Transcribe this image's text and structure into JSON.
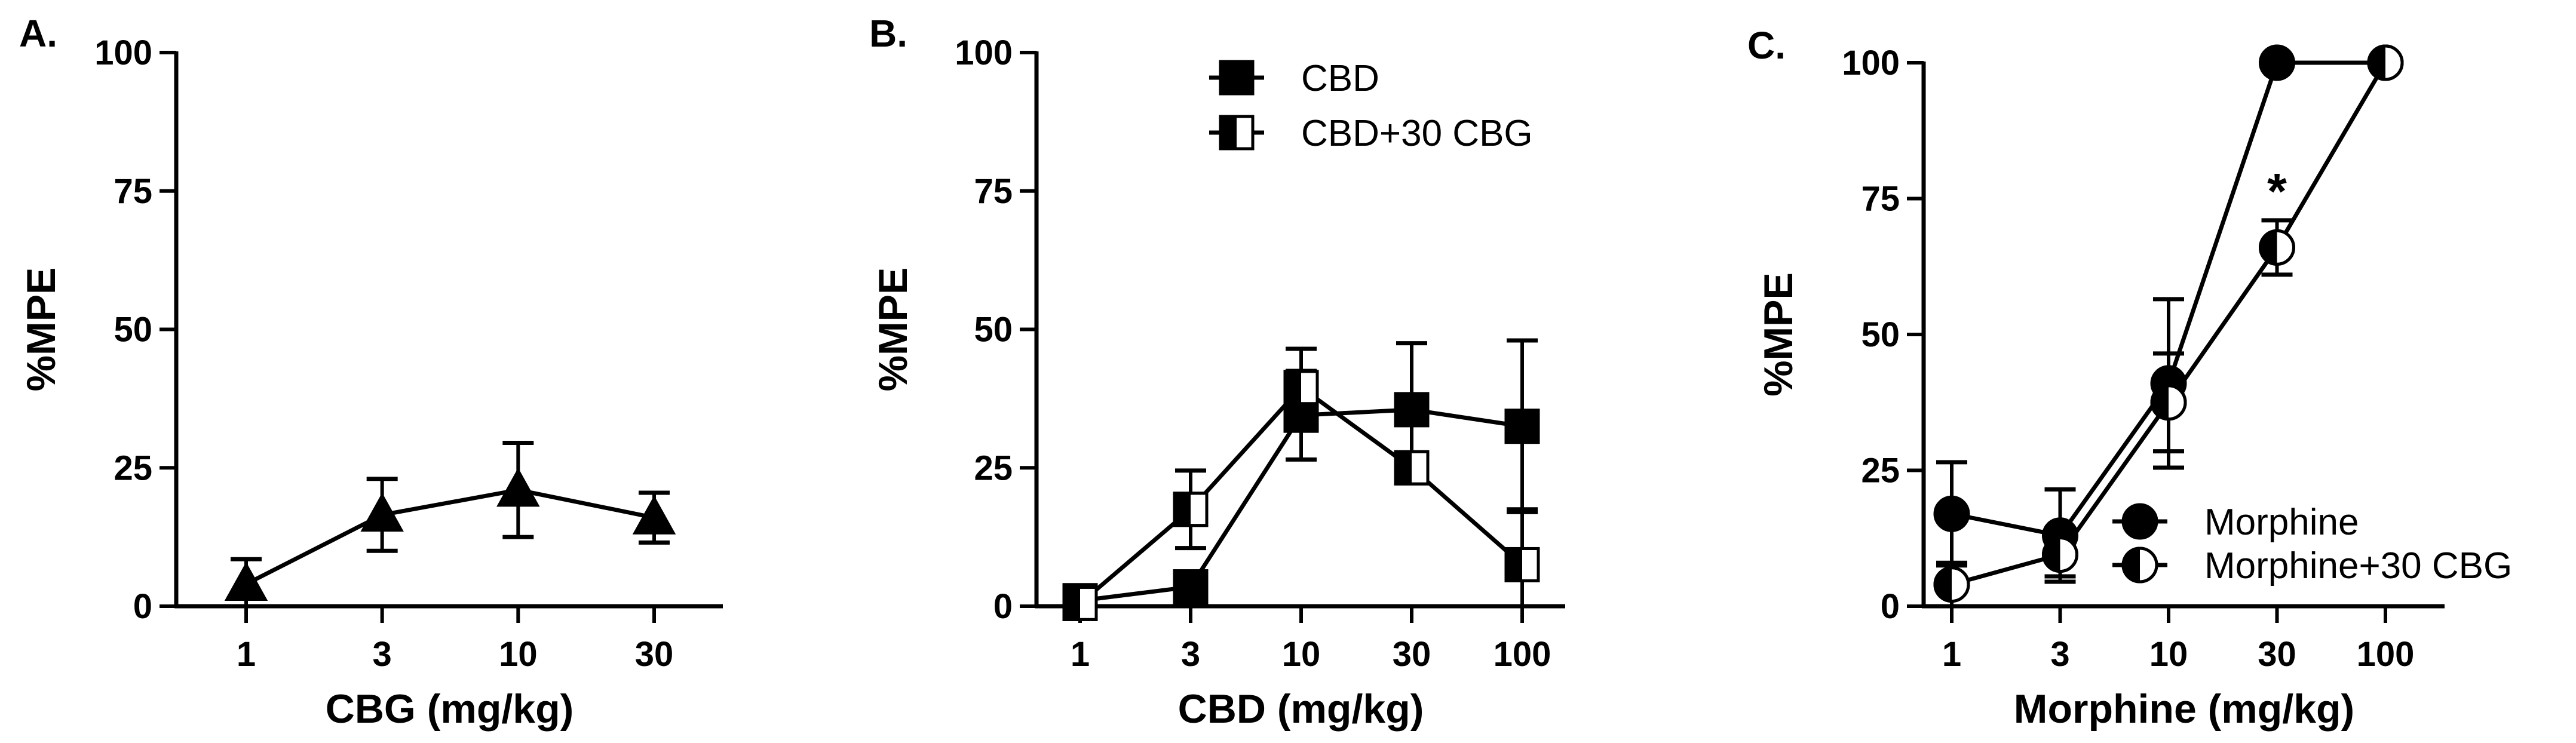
{
  "figure": {
    "background": "#ffffff",
    "ink": "#000000"
  },
  "chart_data": [
    {
      "panel": "A.",
      "type": "line",
      "xlabel": "CBG (mg/kg)",
      "ylabel": "%MPE",
      "x_scale": "categorical",
      "categories": [
        "1",
        "3",
        "10",
        "30"
      ],
      "ylim": [
        0,
        100
      ],
      "yticks": [
        0,
        25,
        50,
        75,
        100
      ],
      "grid": false,
      "legend": null,
      "series": [
        {
          "marker": "triangle",
          "fill": "solid",
          "values": [
            4,
            16.5,
            21,
            16
          ],
          "error": [
            4.5,
            6.5,
            8.5,
            4.5
          ]
        }
      ],
      "annotations": []
    },
    {
      "panel": "B.",
      "type": "line",
      "xlabel": "CBD (mg/kg)",
      "ylabel": "%MPE",
      "x_scale": "categorical",
      "categories": [
        "1",
        "3",
        "10",
        "30",
        "100"
      ],
      "ylim": [
        0,
        100
      ],
      "yticks": [
        0,
        25,
        50,
        75,
        100
      ],
      "grid": false,
      "legend": {
        "position": "top-right"
      },
      "series": [
        {
          "name": "CBD",
          "marker": "square",
          "fill": "solid",
          "values": [
            1,
            3.5,
            34.5,
            35.5,
            32.5
          ],
          "error": [
            1,
            0.5,
            8,
            12,
            15.5
          ]
        },
        {
          "name": "CBD+30 CBG",
          "marker": "square",
          "fill": "half",
          "values": [
            0.5,
            17.5,
            39.5,
            25,
            7.5
          ],
          "error": [
            0.5,
            7,
            7,
            2.5,
            10
          ]
        }
      ],
      "annotations": []
    },
    {
      "panel": "C.",
      "type": "line",
      "xlabel": "Morphine (mg/kg)",
      "ylabel": "%MPE",
      "x_scale": "categorical",
      "categories": [
        "1",
        "3",
        "10",
        "30",
        "100"
      ],
      "ylim": [
        0,
        100
      ],
      "yticks": [
        0,
        25,
        50,
        75,
        100
      ],
      "grid": false,
      "legend": {
        "position": "bottom-right"
      },
      "series": [
        {
          "name": "Morphine",
          "marker": "circle",
          "fill": "solid",
          "values": [
            17,
            13,
            41,
            100,
            100
          ],
          "error": [
            9.5,
            8.5,
            15.5,
            0,
            0
          ]
        },
        {
          "name": "Morphine+30 CBG",
          "marker": "circle",
          "fill": "half",
          "values": [
            4,
            9.5,
            37.5,
            66,
            100
          ],
          "error": [
            4,
            4,
            9,
            5,
            0
          ]
        }
      ],
      "annotations": [
        {
          "text": "*",
          "category": "30",
          "series": 1
        }
      ]
    }
  ]
}
